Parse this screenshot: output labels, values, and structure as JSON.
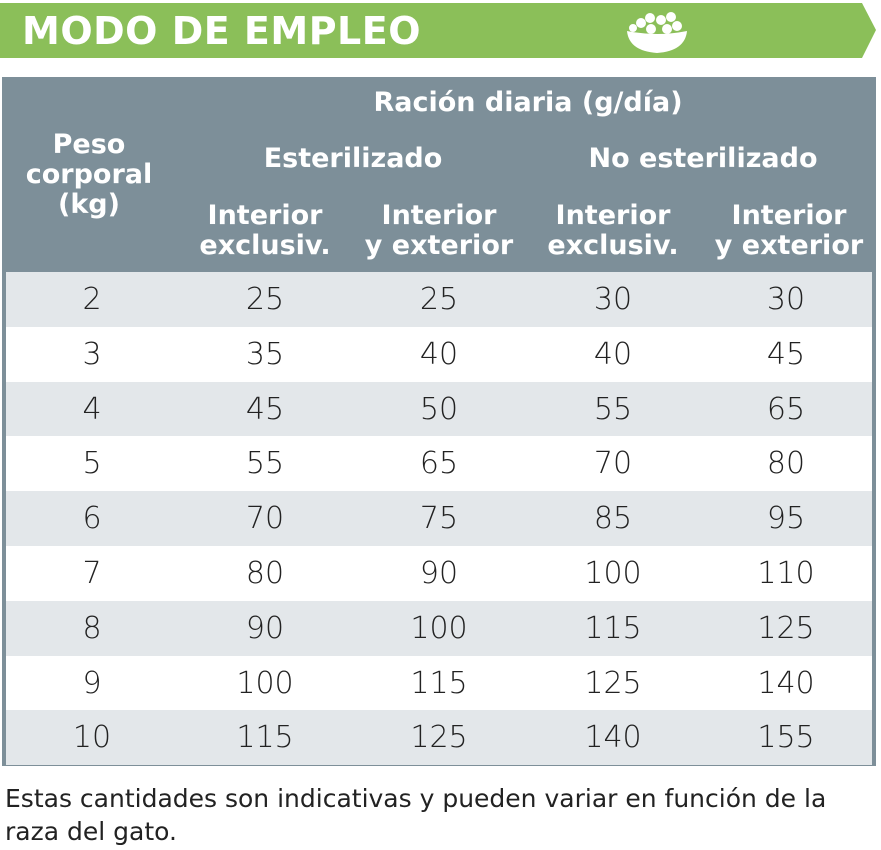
{
  "banner": {
    "title": "MODO DE EMPLEO",
    "icon": "food-bowl-icon",
    "color": "#8bbf59"
  },
  "table": {
    "header_color": "#7d8f99",
    "stripe_color": "#e3e7ea",
    "weight_header": "Peso\ncorporal\n(kg)",
    "group_header": "Ración diaria (g/día)",
    "subgroups": [
      "Esterilizado",
      "No esterilizado"
    ],
    "columns": [
      "Interior\nexclusiv.",
      "Interior\ny exterior",
      "Interior\nexclusiv.",
      "Interior\ny exterior"
    ],
    "rows": [
      [
        "2",
        "25",
        "25",
        "30",
        "30"
      ],
      [
        "3",
        "35",
        "40",
        "40",
        "45"
      ],
      [
        "4",
        "45",
        "50",
        "55",
        "65"
      ],
      [
        "5",
        "55",
        "65",
        "70",
        "80"
      ],
      [
        "6",
        "70",
        "75",
        "85",
        "95"
      ],
      [
        "7",
        "80",
        "90",
        "100",
        "110"
      ],
      [
        "8",
        "90",
        "100",
        "115",
        "125"
      ],
      [
        "9",
        "100",
        "115",
        "125",
        "140"
      ],
      [
        "10",
        "115",
        "125",
        "140",
        "155"
      ]
    ]
  },
  "footnote": "Estas cantidades son indicativas y pueden variar en función de la raza del gato."
}
